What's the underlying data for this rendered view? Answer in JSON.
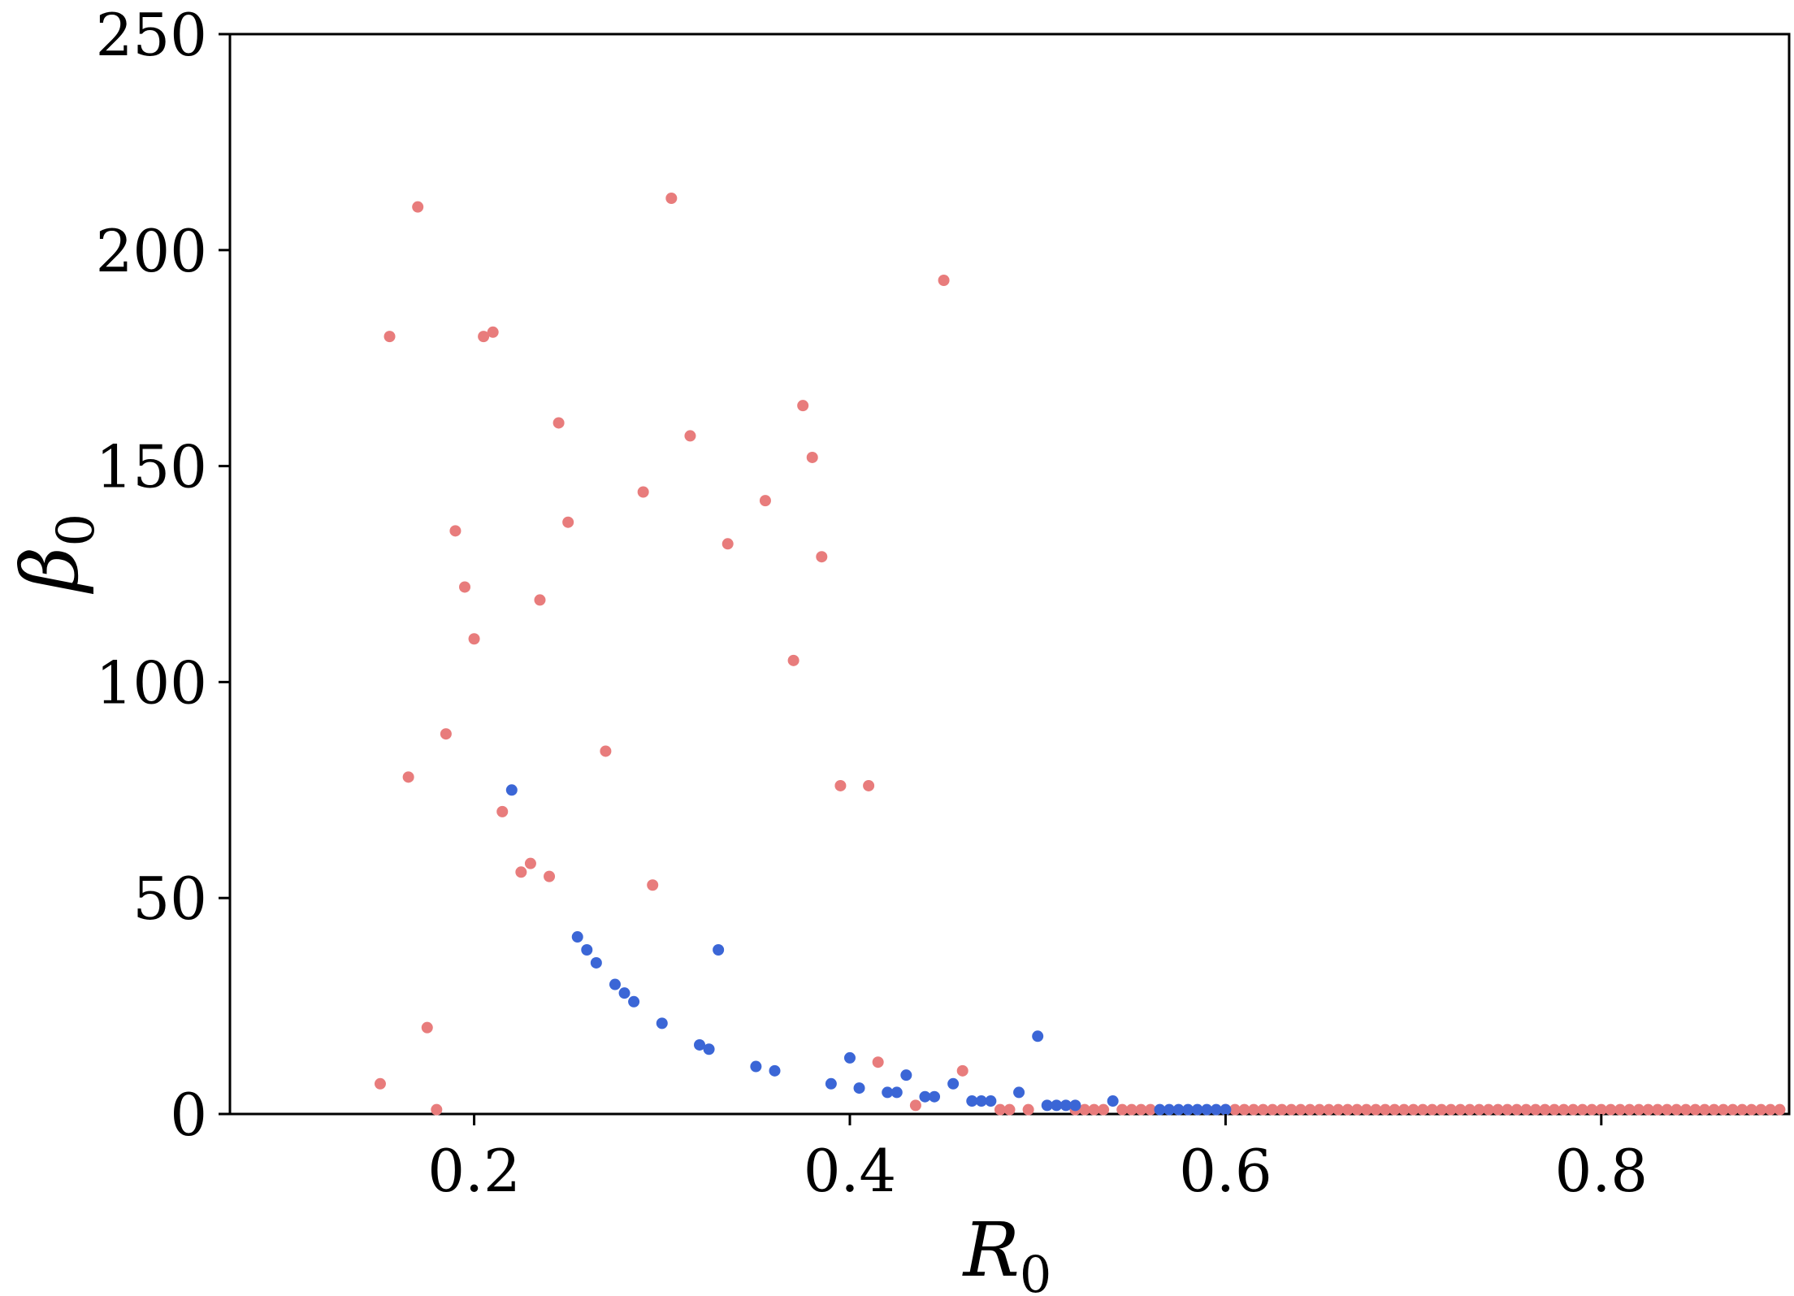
{
  "chart_data": {
    "type": "scatter",
    "xlabel": "R",
    "xlabel_sub": "0",
    "ylabel": "β",
    "ylabel_sub": "0",
    "xlim": [
      0.07,
      0.9
    ],
    "ylim": [
      0,
      250
    ],
    "x_ticks": [
      0.2,
      0.4,
      0.6,
      0.8
    ],
    "x_tick_labels": [
      "0.2",
      "0.4",
      "0.6",
      "0.8"
    ],
    "y_ticks": [
      0,
      50,
      100,
      150,
      200,
      250
    ],
    "y_tick_labels": [
      "0",
      "50",
      "100",
      "150",
      "200",
      "250"
    ],
    "grid": false,
    "colors": {
      "series_red": "#e87c7c",
      "series_blue": "#3b66d6"
    },
    "series": [
      {
        "color": "#e87c7c",
        "points": [
          [
            0.15,
            7
          ],
          [
            0.155,
            180
          ],
          [
            0.165,
            78
          ],
          [
            0.17,
            210
          ],
          [
            0.175,
            20
          ],
          [
            0.18,
            1
          ],
          [
            0.185,
            88
          ],
          [
            0.19,
            135
          ],
          [
            0.195,
            122
          ],
          [
            0.2,
            110
          ],
          [
            0.205,
            180
          ],
          [
            0.21,
            181
          ],
          [
            0.215,
            70
          ],
          [
            0.225,
            56
          ],
          [
            0.23,
            58
          ],
          [
            0.235,
            119
          ],
          [
            0.24,
            55
          ],
          [
            0.245,
            160
          ],
          [
            0.25,
            137
          ],
          [
            0.27,
            84
          ],
          [
            0.29,
            144
          ],
          [
            0.295,
            53
          ],
          [
            0.305,
            212
          ],
          [
            0.315,
            157
          ],
          [
            0.335,
            132
          ],
          [
            0.355,
            142
          ],
          [
            0.37,
            105
          ],
          [
            0.375,
            164
          ],
          [
            0.38,
            152
          ],
          [
            0.385,
            129
          ],
          [
            0.395,
            76
          ],
          [
            0.41,
            76
          ],
          [
            0.415,
            12
          ],
          [
            0.435,
            2
          ],
          [
            0.45,
            193
          ],
          [
            0.46,
            10
          ],
          [
            0.48,
            1
          ],
          [
            0.485,
            1
          ],
          [
            0.495,
            1
          ],
          [
            0.52,
            1
          ],
          [
            0.525,
            1
          ],
          [
            0.53,
            1
          ],
          [
            0.535,
            1
          ],
          [
            0.545,
            1
          ],
          [
            0.55,
            1
          ],
          [
            0.555,
            1
          ],
          [
            0.56,
            1
          ],
          [
            0.6,
            1
          ],
          [
            0.605,
            1
          ],
          [
            0.61,
            1
          ],
          [
            0.615,
            1
          ],
          [
            0.62,
            1
          ],
          [
            0.625,
            1
          ],
          [
            0.63,
            1
          ],
          [
            0.635,
            1
          ],
          [
            0.64,
            1
          ],
          [
            0.645,
            1
          ],
          [
            0.65,
            1
          ],
          [
            0.655,
            1
          ],
          [
            0.66,
            1
          ],
          [
            0.665,
            1
          ],
          [
            0.67,
            1
          ],
          [
            0.675,
            1
          ],
          [
            0.68,
            1
          ],
          [
            0.685,
            1
          ],
          [
            0.69,
            1
          ],
          [
            0.695,
            1
          ],
          [
            0.7,
            1
          ],
          [
            0.705,
            1
          ],
          [
            0.71,
            1
          ],
          [
            0.715,
            1
          ],
          [
            0.72,
            1
          ],
          [
            0.725,
            1
          ],
          [
            0.73,
            1
          ],
          [
            0.735,
            1
          ],
          [
            0.74,
            1
          ],
          [
            0.745,
            1
          ],
          [
            0.75,
            1
          ],
          [
            0.755,
            1
          ],
          [
            0.76,
            1
          ],
          [
            0.765,
            1
          ],
          [
            0.77,
            1
          ],
          [
            0.775,
            1
          ],
          [
            0.78,
            1
          ],
          [
            0.785,
            1
          ],
          [
            0.79,
            1
          ],
          [
            0.795,
            1
          ],
          [
            0.8,
            1
          ],
          [
            0.805,
            1
          ],
          [
            0.81,
            1
          ],
          [
            0.815,
            1
          ],
          [
            0.82,
            1
          ],
          [
            0.825,
            1
          ],
          [
            0.83,
            1
          ],
          [
            0.835,
            1
          ],
          [
            0.84,
            1
          ],
          [
            0.845,
            1
          ],
          [
            0.85,
            1
          ],
          [
            0.855,
            1
          ],
          [
            0.86,
            1
          ],
          [
            0.865,
            1
          ],
          [
            0.87,
            1
          ],
          [
            0.875,
            1
          ],
          [
            0.88,
            1
          ],
          [
            0.885,
            1
          ],
          [
            0.89,
            1
          ],
          [
            0.895,
            1
          ]
        ]
      },
      {
        "color": "#3b66d6",
        "points": [
          [
            0.22,
            75
          ],
          [
            0.255,
            41
          ],
          [
            0.26,
            38
          ],
          [
            0.265,
            35
          ],
          [
            0.275,
            30
          ],
          [
            0.28,
            28
          ],
          [
            0.285,
            26
          ],
          [
            0.3,
            21
          ],
          [
            0.32,
            16
          ],
          [
            0.325,
            15
          ],
          [
            0.33,
            38
          ],
          [
            0.35,
            11
          ],
          [
            0.36,
            10
          ],
          [
            0.39,
            7
          ],
          [
            0.4,
            13
          ],
          [
            0.405,
            6
          ],
          [
            0.42,
            5
          ],
          [
            0.425,
            5
          ],
          [
            0.43,
            9
          ],
          [
            0.44,
            4
          ],
          [
            0.445,
            4
          ],
          [
            0.455,
            7
          ],
          [
            0.465,
            3
          ],
          [
            0.47,
            3
          ],
          [
            0.475,
            3
          ],
          [
            0.49,
            5
          ],
          [
            0.5,
            18
          ],
          [
            0.505,
            2
          ],
          [
            0.51,
            2
          ],
          [
            0.515,
            2
          ],
          [
            0.52,
            2
          ],
          [
            0.54,
            3
          ],
          [
            0.565,
            1
          ],
          [
            0.57,
            1
          ],
          [
            0.575,
            1
          ],
          [
            0.58,
            1
          ],
          [
            0.585,
            1
          ],
          [
            0.59,
            1
          ],
          [
            0.595,
            1
          ],
          [
            0.6,
            1
          ]
        ]
      }
    ]
  }
}
